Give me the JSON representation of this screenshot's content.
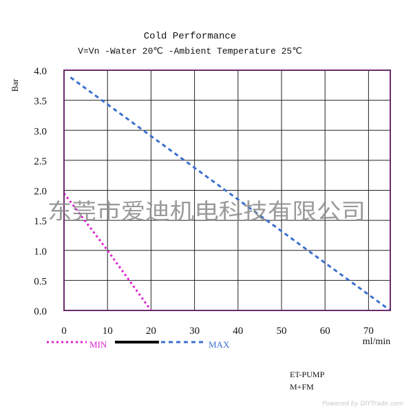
{
  "chart_data": {
    "type": "line",
    "title": "Cold Performance",
    "subtitle": "V=Vn -Water 20℃ -Ambient Temperature 25℃",
    "ylabel": "Bar",
    "xlabel": "ml/min",
    "xlim": [
      0,
      75
    ],
    "ylim": [
      0,
      4
    ],
    "x_ticks": [
      "0",
      "10",
      "20",
      "30",
      "40",
      "50",
      "60",
      "70"
    ],
    "y_ticks": [
      "0.0",
      "0.5",
      "1.0",
      "1.5",
      "2.0",
      "2.5",
      "3.0",
      "3.5",
      "4.0"
    ],
    "grid": true,
    "legend_position": "bottom-left",
    "series": [
      {
        "name": "MIN",
        "color": "#e020d0",
        "style": "dotted",
        "points": [
          [
            0,
            1.95
          ],
          [
            10,
            1.0
          ],
          [
            20,
            0.0
          ]
        ]
      },
      {
        "name": "MAX",
        "color": "#3a6fd0",
        "style": "dashed",
        "points": [
          [
            1.5,
            3.88
          ],
          [
            75,
            0.0
          ]
        ]
      }
    ],
    "legend_spacer_color": "#000000",
    "annotations": [
      "ET-PUMP",
      "M+FM"
    ]
  },
  "watermark": "东莞市爱迪机电科技有限公司",
  "footer": "Powered by DIYTrade.com",
  "colors": {
    "frame": "#6a2a6a",
    "grid": "#222222",
    "watermark": "#888888"
  }
}
